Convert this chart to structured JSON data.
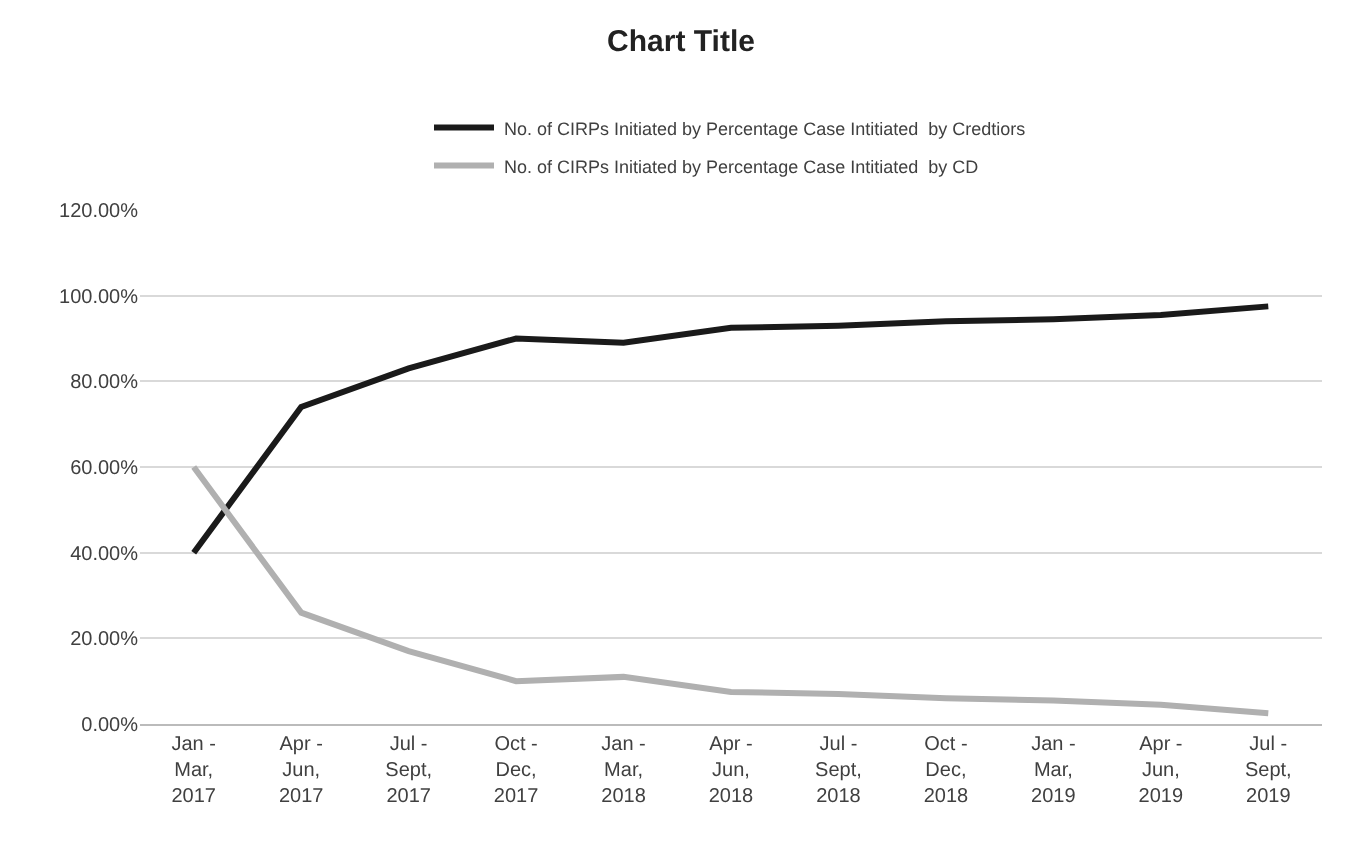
{
  "chart_data": {
    "type": "line",
    "title": "Chart Title",
    "categories": [
      "Jan -\nMar,\n2017",
      "Apr -\nJun,\n2017",
      "Jul -\nSept,\n2017",
      "Oct -\nDec,\n2017",
      "Jan -\nMar,\n2018",
      "Apr -\nJun,\n2018",
      "Jul -\nSept,\n2018",
      "Oct -\nDec,\n2018",
      "Jan -\nMar,\n2019",
      "Apr -\nJun,\n2019",
      "Jul -\nSept,\n2019"
    ],
    "series": [
      {
        "name": "No. of CIRPs Initiated by Percentage Case Intitiated  by Credtiors",
        "color": "#1a1a1a",
        "values": [
          40,
          74,
          83,
          90,
          89,
          92.5,
          93,
          94,
          94.5,
          95.5,
          97.5
        ]
      },
      {
        "name": "No. of CIRPs Initiated by Percentage Case Intitiated  by CD",
        "color": "#b0b0b0",
        "values": [
          60,
          26,
          17,
          10,
          11,
          7.5,
          7,
          6,
          5.5,
          4.5,
          2.5
        ]
      }
    ],
    "ylim": [
      0,
      120
    ],
    "yticks": [
      {
        "value": 0,
        "label": "0.00%"
      },
      {
        "value": 20,
        "label": "20.00%"
      },
      {
        "value": 40,
        "label": "40.00%"
      },
      {
        "value": 60,
        "label": "60.00%"
      },
      {
        "value": 80,
        "label": "80.00%"
      },
      {
        "value": 100,
        "label": "100.00%"
      },
      {
        "value": 120,
        "label": "120.00%"
      }
    ],
    "grid": "y",
    "legend": "top",
    "marker": "none",
    "line_style": "solid"
  }
}
